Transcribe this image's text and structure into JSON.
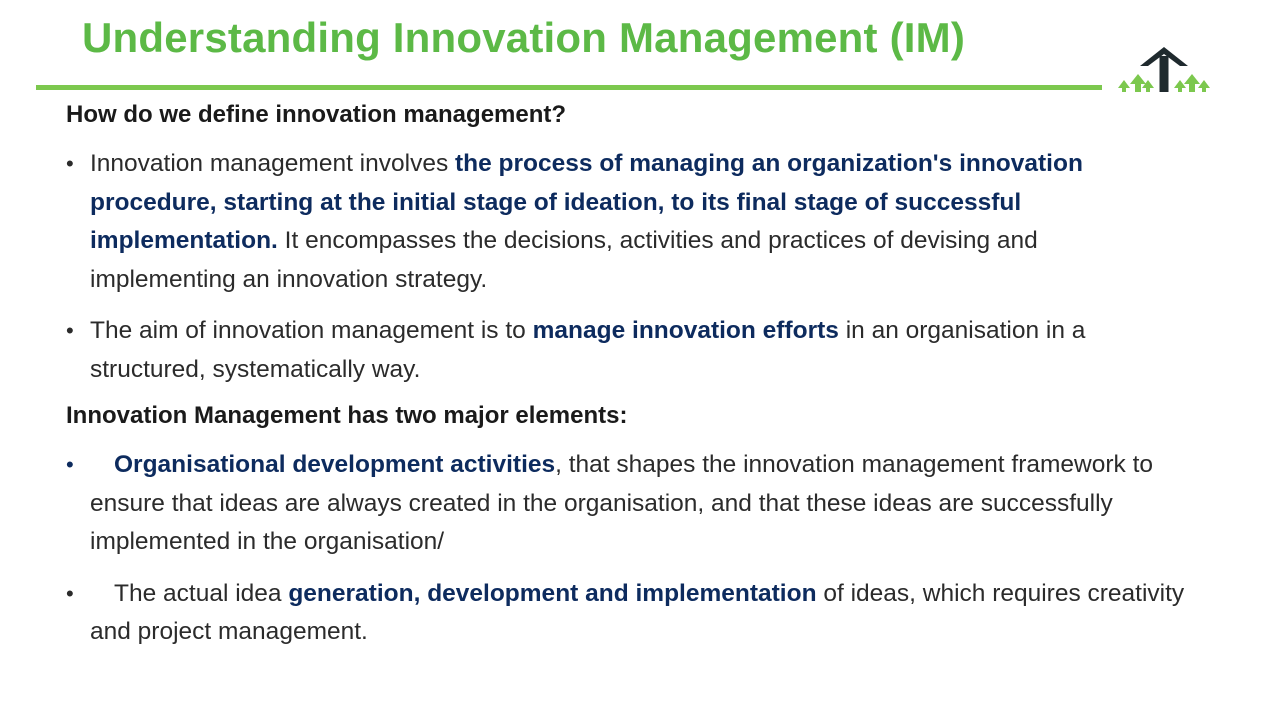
{
  "title": "Understanding Innovation Management (IM)",
  "colors": {
    "title_green": "#5cb946",
    "rule_green": "#7cc84e",
    "emphasis_navy": "#0d2b5e",
    "logo_dark": "#1f2a2e"
  },
  "logo": {
    "icon": "upward-arrows-logo-icon"
  },
  "section1": {
    "heading": "How do we define innovation management?",
    "bullets": [
      {
        "before": "Innovation management involves ",
        "emphasis": "the process of managing an organization's innovation procedure, starting at the initial stage of ideation, to its final stage of successful implementation.",
        "after": " It encompasses the decisions, activities and practices of devising and implementing an innovation strategy."
      },
      {
        "before": "The aim of innovation management is to ",
        "emphasis": "manage innovation efforts",
        "after": " in an organisation in a structured, systematically way."
      }
    ]
  },
  "section2": {
    "heading": "Innovation Management has two major elements:",
    "bullets": [
      {
        "before": "",
        "emphasis": "Organisational development activities",
        "after": ", that shapes the innovation management framework to ensure that ideas are always created in the organisation, and that these ideas are successfully implemented in the organisation/"
      },
      {
        "before": "The actual idea ",
        "emphasis": "generation, development and implementation",
        "after": " of ideas, which requires creativity and project management."
      }
    ]
  }
}
